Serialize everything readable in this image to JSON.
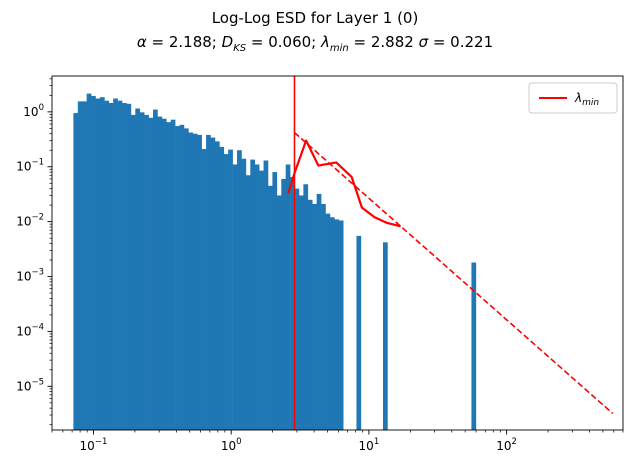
{
  "chart_data": {
    "type": "bar",
    "title": "Log-Log ESD for Layer 1 (0)",
    "subtitle": {
      "alpha_sym": "α",
      "alpha_val": " = 2.188; ",
      "dks_main": "D",
      "dks_sub": "KS",
      "dks_val": " = 0.060; ",
      "lmin_main": "λ",
      "lmin_sub": "min",
      "lmin_val": " = 2.882 ",
      "sigma_sym": "σ",
      "sigma_val": " = 0.221"
    },
    "xscale": "log",
    "yscale": "log",
    "xlim": [
      0.05,
      700
    ],
    "ylim": [
      1.6e-06,
      4.5
    ],
    "x_ticks": [
      {
        "value": 0.1,
        "base": "10",
        "exp": "−1"
      },
      {
        "value": 1,
        "base": "10",
        "exp": "0"
      },
      {
        "value": 10,
        "base": "10",
        "exp": "1"
      },
      {
        "value": 100,
        "base": "10",
        "exp": "2"
      }
    ],
    "y_ticks": [
      {
        "value": 1e-05,
        "base": "10",
        "exp": "−5"
      },
      {
        "value": 0.0001,
        "base": "10",
        "exp": "−4"
      },
      {
        "value": 0.001,
        "base": "10",
        "exp": "−3"
      },
      {
        "value": 0.01,
        "base": "10",
        "exp": "−2"
      },
      {
        "value": 0.1,
        "base": "10",
        "exp": "−1"
      },
      {
        "value": 1,
        "base": "10",
        "exp": "0"
      }
    ],
    "histogram": {
      "color": "#1f77b4",
      "bin_start": 0.0715,
      "bin_ratio": 1.07675,
      "values": [
        0.95,
        1.55,
        1.55,
        2.15,
        1.95,
        1.75,
        1.85,
        1.6,
        1.45,
        1.75,
        1.6,
        1.45,
        1.4,
        0.88,
        1.15,
        0.98,
        0.88,
        0.78,
        1.1,
        0.82,
        0.75,
        0.65,
        0.72,
        0.55,
        0.58,
        0.5,
        0.42,
        0.4,
        0.38,
        0.21,
        0.38,
        0.34,
        0.29,
        0.23,
        0.17,
        0.205,
        0.11,
        0.2,
        0.14,
        0.07,
        0.135,
        0.11,
        0.085,
        0.13,
        0.045,
        0.08,
        0.03,
        0.06,
        0.11,
        0.065,
        0.04,
        0.03,
        0.048,
        0.025,
        0.021,
        0.032,
        0.021,
        0.014,
        0.012,
        0.011,
        0.0105,
        0,
        0,
        0,
        0.0055,
        0,
        0,
        0,
        0,
        0,
        0.0042,
        0,
        0,
        0,
        0,
        0,
        0,
        0,
        0,
        0,
        0,
        0,
        0,
        0,
        0,
        0,
        0,
        0,
        0,
        0,
        0.0018
      ]
    },
    "series": [
      {
        "type": "line",
        "color": "#ff0000",
        "style": "solid",
        "x": [
          2.6,
          2.9,
          3.5,
          4.3,
          5.8,
          7.5,
          8.9,
          11.0,
          13.5,
          17.0
        ],
        "y": [
          0.033,
          0.08,
          0.3,
          0.105,
          0.12,
          0.065,
          0.018,
          0.012,
          0.0095,
          0.0082
        ]
      },
      {
        "type": "line",
        "color": "#ff0000",
        "style": "dashed",
        "x": [
          2.882,
          590
        ],
        "y": [
          0.42,
          3.2e-06
        ]
      }
    ],
    "vline": {
      "x": 2.882,
      "color": "#ff0000"
    },
    "legend": {
      "position": "top-right",
      "entries": [
        {
          "main": "λ",
          "sub": "min",
          "color": "#ff0000",
          "style": "solid"
        }
      ]
    }
  }
}
